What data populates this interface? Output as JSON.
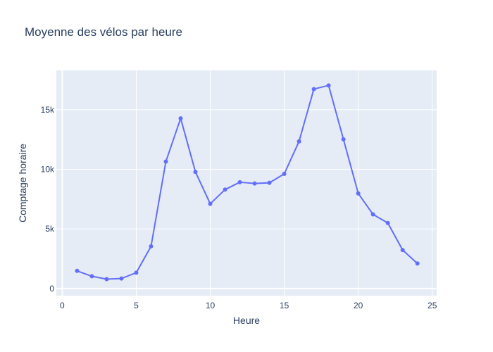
{
  "chart_data": {
    "type": "line",
    "title": "Moyenne des vélos par heure",
    "xlabel": "Heure",
    "ylabel": "Comptage horaire",
    "xlim": [
      -0.4,
      25.3
    ],
    "ylim": [
      -600,
      18300
    ],
    "x_ticks": [
      0,
      5,
      10,
      15,
      20,
      25
    ],
    "x_tick_labels": [
      "0",
      "5",
      "10",
      "15",
      "20",
      "25"
    ],
    "y_ticks": [
      0,
      5000,
      10000,
      15000
    ],
    "y_tick_labels": [
      "0",
      "5k",
      "10k",
      "15k"
    ],
    "grid": true,
    "series": [
      {
        "x": [
          1,
          2,
          3,
          4,
          5,
          6,
          7,
          8,
          9,
          10,
          11,
          12,
          13,
          14,
          15,
          16,
          17,
          18,
          19,
          20,
          21,
          22,
          23,
          24
        ],
        "values": [
          1480,
          1030,
          790,
          840,
          1330,
          3540,
          10650,
          14280,
          9780,
          7110,
          8300,
          8920,
          8810,
          8870,
          9620,
          12340,
          16730,
          17040,
          12520,
          7980,
          6220,
          5500,
          3230,
          2100
        ]
      }
    ],
    "colors": {
      "line": "#636efa",
      "plot_background": "#e5ecf6",
      "grid": "#ffffff",
      "text": "#2a3f5f"
    }
  }
}
